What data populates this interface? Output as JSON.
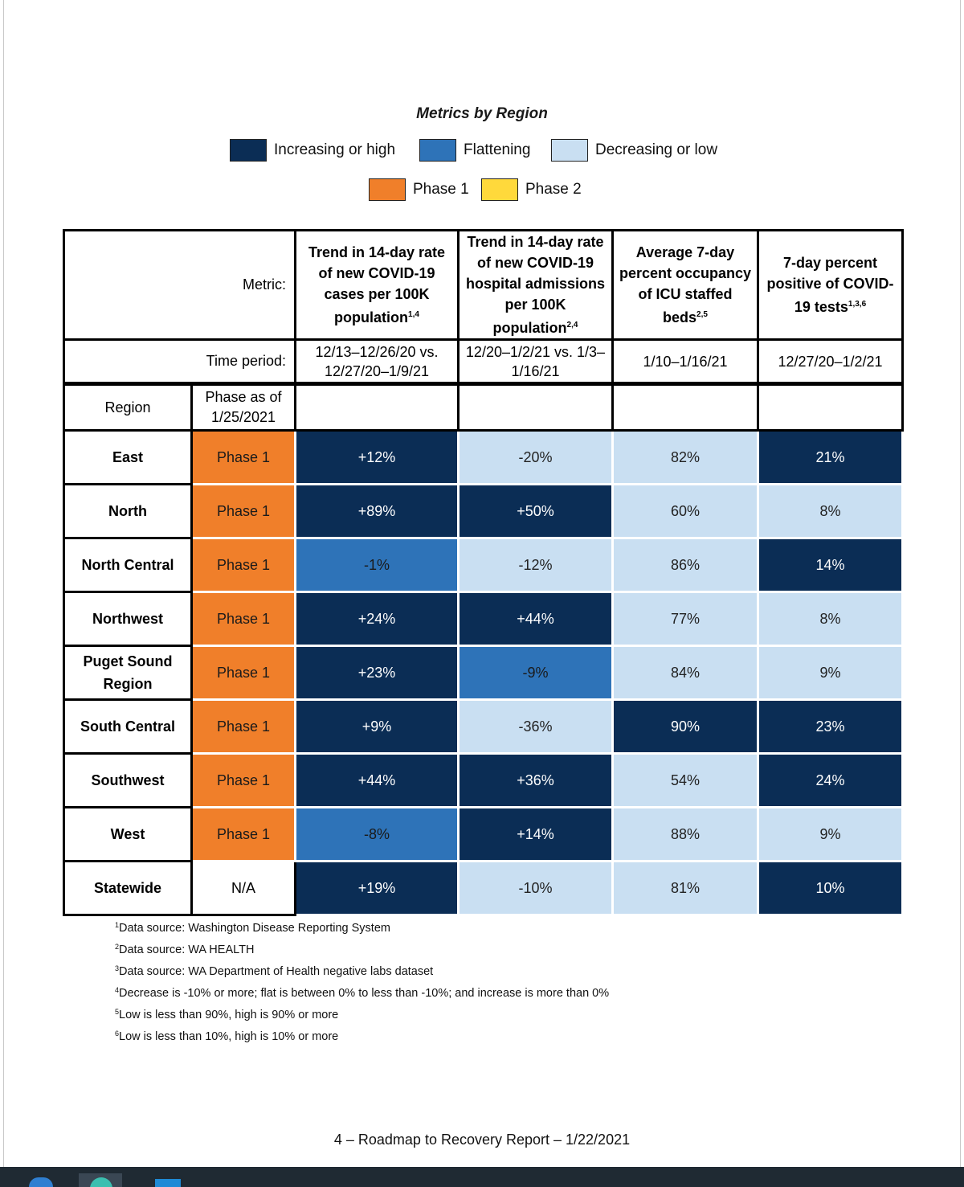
{
  "title": "Metrics by Region",
  "colors": {
    "increasing_high": "#0b2d55",
    "flattening": "#2e73b8",
    "decreasing_low": "#c9dff2",
    "phase1": "#f07f2a",
    "phase2": "#ffd93b"
  },
  "legend": {
    "increasing": "Increasing or high",
    "flattening": "Flattening",
    "decreasing": "Decreasing or low",
    "phase1": "Phase 1",
    "phase2": "Phase 2"
  },
  "table": {
    "metric_label": "Metric:",
    "time_label": "Time period:",
    "region_header": "Region",
    "phase_header": "Phase as of 1/25/2021",
    "columns": [
      {
        "title": "Trend in 14-day rate of new COVID-19 cases per 100K population",
        "sup": "1,4",
        "period": "12/13–12/26/20 vs. 12/27/20–1/9/21"
      },
      {
        "title": "Trend in 14-day rate of new COVID-19 hospital admissions per 100K population",
        "sup": "2,4",
        "period": "12/20–1/2/21 vs. 1/3–1/16/21"
      },
      {
        "title": "Average 7-day percent occupancy of ICU staffed beds",
        "sup": "2,5",
        "period": "1/10–1/16/21"
      },
      {
        "title": "7-day percent positive of COVID-19 tests",
        "sup": "1,3,6",
        "period": "12/27/20–1/2/21"
      }
    ],
    "rows": [
      {
        "region": "East",
        "phase": "Phase 1",
        "values": [
          {
            "v": "+12%",
            "level": "high"
          },
          {
            "v": "-20%",
            "level": "low"
          },
          {
            "v": "82%",
            "level": "low"
          },
          {
            "v": "21%",
            "level": "high"
          }
        ]
      },
      {
        "region": "North",
        "phase": "Phase 1",
        "values": [
          {
            "v": "+89%",
            "level": "high"
          },
          {
            "v": "+50%",
            "level": "high"
          },
          {
            "v": "60%",
            "level": "low"
          },
          {
            "v": "8%",
            "level": "low"
          }
        ]
      },
      {
        "region": "North Central",
        "phase": "Phase 1",
        "values": [
          {
            "v": "-1%",
            "level": "flat"
          },
          {
            "v": "-12%",
            "level": "low"
          },
          {
            "v": "86%",
            "level": "low"
          },
          {
            "v": "14%",
            "level": "high"
          }
        ]
      },
      {
        "region": "Northwest",
        "phase": "Phase 1",
        "values": [
          {
            "v": "+24%",
            "level": "high"
          },
          {
            "v": "+44%",
            "level": "high"
          },
          {
            "v": "77%",
            "level": "low"
          },
          {
            "v": "8%",
            "level": "low"
          }
        ]
      },
      {
        "region": "Puget Sound Region",
        "phase": "Phase 1",
        "values": [
          {
            "v": "+23%",
            "level": "high"
          },
          {
            "v": "-9%",
            "level": "flat"
          },
          {
            "v": "84%",
            "level": "low"
          },
          {
            "v": "9%",
            "level": "low"
          }
        ]
      },
      {
        "region": "South Central",
        "phase": "Phase 1",
        "values": [
          {
            "v": "+9%",
            "level": "high"
          },
          {
            "v": "-36%",
            "level": "low"
          },
          {
            "v": "90%",
            "level": "high"
          },
          {
            "v": "23%",
            "level": "high"
          }
        ]
      },
      {
        "region": "Southwest",
        "phase": "Phase 1",
        "values": [
          {
            "v": "+44%",
            "level": "high"
          },
          {
            "v": "+36%",
            "level": "high"
          },
          {
            "v": "54%",
            "level": "low"
          },
          {
            "v": "24%",
            "level": "high"
          }
        ]
      },
      {
        "region": "West",
        "phase": "Phase 1",
        "values": [
          {
            "v": "-8%",
            "level": "flat"
          },
          {
            "v": "+14%",
            "level": "high"
          },
          {
            "v": "88%",
            "level": "low"
          },
          {
            "v": "9%",
            "level": "low"
          }
        ]
      },
      {
        "region": "Statewide",
        "phase": "N/A",
        "values": [
          {
            "v": "+19%",
            "level": "high"
          },
          {
            "v": "-10%",
            "level": "low"
          },
          {
            "v": "81%",
            "level": "low"
          },
          {
            "v": "10%",
            "level": "high"
          }
        ]
      }
    ]
  },
  "footnotes": [
    {
      "n": "1",
      "text": "Data source: Washington Disease Reporting System"
    },
    {
      "n": "2",
      "text": "Data source: WA HEALTH"
    },
    {
      "n": "3",
      "text": "Data source: WA Department of Health negative labs dataset"
    },
    {
      "n": "4",
      "text": "Decrease is -10% or more; flat is between 0% to less than -10%; and increase is more than 0%"
    },
    {
      "n": "5",
      "text": "Low is less than 90%, high is 90% or more"
    },
    {
      "n": "6",
      "text": "Low is less than 10%, high is 10% or more"
    }
  ],
  "footer": "4 – Roadmap to Recovery Report – 1/22/2021",
  "taskbar_icons": [
    "edge-icon",
    "chrome-icon",
    "app-icon"
  ]
}
